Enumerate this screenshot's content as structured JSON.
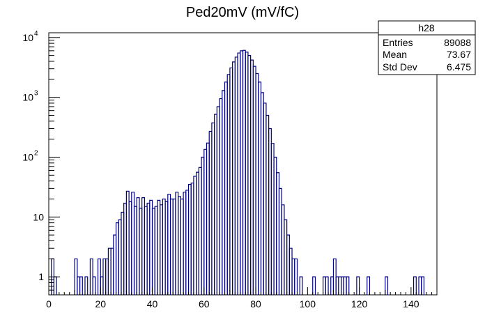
{
  "chart_data": {
    "type": "histogram",
    "title": "Ped20mV (mV/fC)",
    "xlabel": "",
    "ylabel": "",
    "xlim": [
      0,
      150
    ],
    "ylim": [
      0.5,
      12000
    ],
    "ylog": true,
    "grid": false,
    "x_ticks": [
      0,
      20,
      40,
      60,
      80,
      100,
      120,
      140
    ],
    "y_ticks": [
      {
        "value": 1,
        "base": "1",
        "exp": ""
      },
      {
        "value": 10,
        "base": "10",
        "exp": ""
      },
      {
        "value": 100,
        "base": "10",
        "exp": "2"
      },
      {
        "value": 1000,
        "base": "10",
        "exp": "3"
      },
      {
        "value": 10000,
        "base": "10",
        "exp": "4"
      }
    ],
    "line_color": "#000080",
    "bin_width": 1,
    "bins": [
      [
        1,
        2
      ],
      [
        2,
        1
      ],
      [
        10,
        2
      ],
      [
        11,
        1
      ],
      [
        12,
        1
      ],
      [
        14,
        1
      ],
      [
        16,
        2
      ],
      [
        17,
        1
      ],
      [
        19,
        2
      ],
      [
        20,
        1
      ],
      [
        21,
        2
      ],
      [
        22,
        2
      ],
      [
        23,
        3
      ],
      [
        24,
        3
      ],
      [
        25,
        5
      ],
      [
        26,
        8
      ],
      [
        27,
        9
      ],
      [
        28,
        12
      ],
      [
        29,
        17
      ],
      [
        30,
        27
      ],
      [
        31,
        18
      ],
      [
        32,
        26
      ],
      [
        33,
        15
      ],
      [
        34,
        21
      ],
      [
        35,
        14
      ],
      [
        36,
        21
      ],
      [
        37,
        15
      ],
      [
        38,
        17
      ],
      [
        39,
        19
      ],
      [
        40,
        14
      ],
      [
        41,
        15
      ],
      [
        42,
        19
      ],
      [
        43,
        16
      ],
      [
        44,
        20
      ],
      [
        45,
        18
      ],
      [
        46,
        24
      ],
      [
        47,
        20
      ],
      [
        48,
        20
      ],
      [
        49,
        26
      ],
      [
        50,
        22
      ],
      [
        51,
        20
      ],
      [
        52,
        26
      ],
      [
        53,
        28
      ],
      [
        54,
        35
      ],
      [
        55,
        37
      ],
      [
        56,
        48
      ],
      [
        57,
        56
      ],
      [
        58,
        67
      ],
      [
        59,
        100
      ],
      [
        60,
        135
      ],
      [
        61,
        172
      ],
      [
        62,
        270
      ],
      [
        63,
        375
      ],
      [
        64,
        520
      ],
      [
        65,
        700
      ],
      [
        66,
        950
      ],
      [
        67,
        1300
      ],
      [
        68,
        1800
      ],
      [
        69,
        2400
      ],
      [
        70,
        3100
      ],
      [
        71,
        3900
      ],
      [
        72,
        4700
      ],
      [
        73,
        5500
      ],
      [
        74,
        6000
      ],
      [
        75,
        6100
      ],
      [
        76,
        5700
      ],
      [
        77,
        5000
      ],
      [
        78,
        4200
      ],
      [
        79,
        3300
      ],
      [
        80,
        2500
      ],
      [
        81,
        1800
      ],
      [
        82,
        1200
      ],
      [
        83,
        800
      ],
      [
        84,
        500
      ],
      [
        85,
        300
      ],
      [
        86,
        170
      ],
      [
        87,
        100
      ],
      [
        88,
        55
      ],
      [
        89,
        30
      ],
      [
        90,
        16
      ],
      [
        91,
        9
      ],
      [
        92,
        5
      ],
      [
        93,
        3
      ],
      [
        94,
        2
      ],
      [
        95,
        2
      ],
      [
        97,
        1
      ],
      [
        102,
        1
      ],
      [
        106,
        1
      ],
      [
        107,
        1
      ],
      [
        109,
        1
      ],
      [
        110,
        2
      ],
      [
        111,
        1
      ],
      [
        112,
        1
      ],
      [
        113,
        1
      ],
      [
        114,
        1
      ],
      [
        115,
        1
      ],
      [
        119,
        1
      ],
      [
        123,
        1
      ],
      [
        130,
        1
      ],
      [
        141,
        1
      ],
      [
        143,
        1
      ],
      [
        144,
        1
      ]
    ]
  },
  "stats": {
    "name": "h28",
    "rows": [
      {
        "label": "Entries",
        "value": "89088"
      },
      {
        "label": "Mean",
        "value": "73.67"
      },
      {
        "label": "Std Dev",
        "value": "6.475"
      }
    ]
  }
}
